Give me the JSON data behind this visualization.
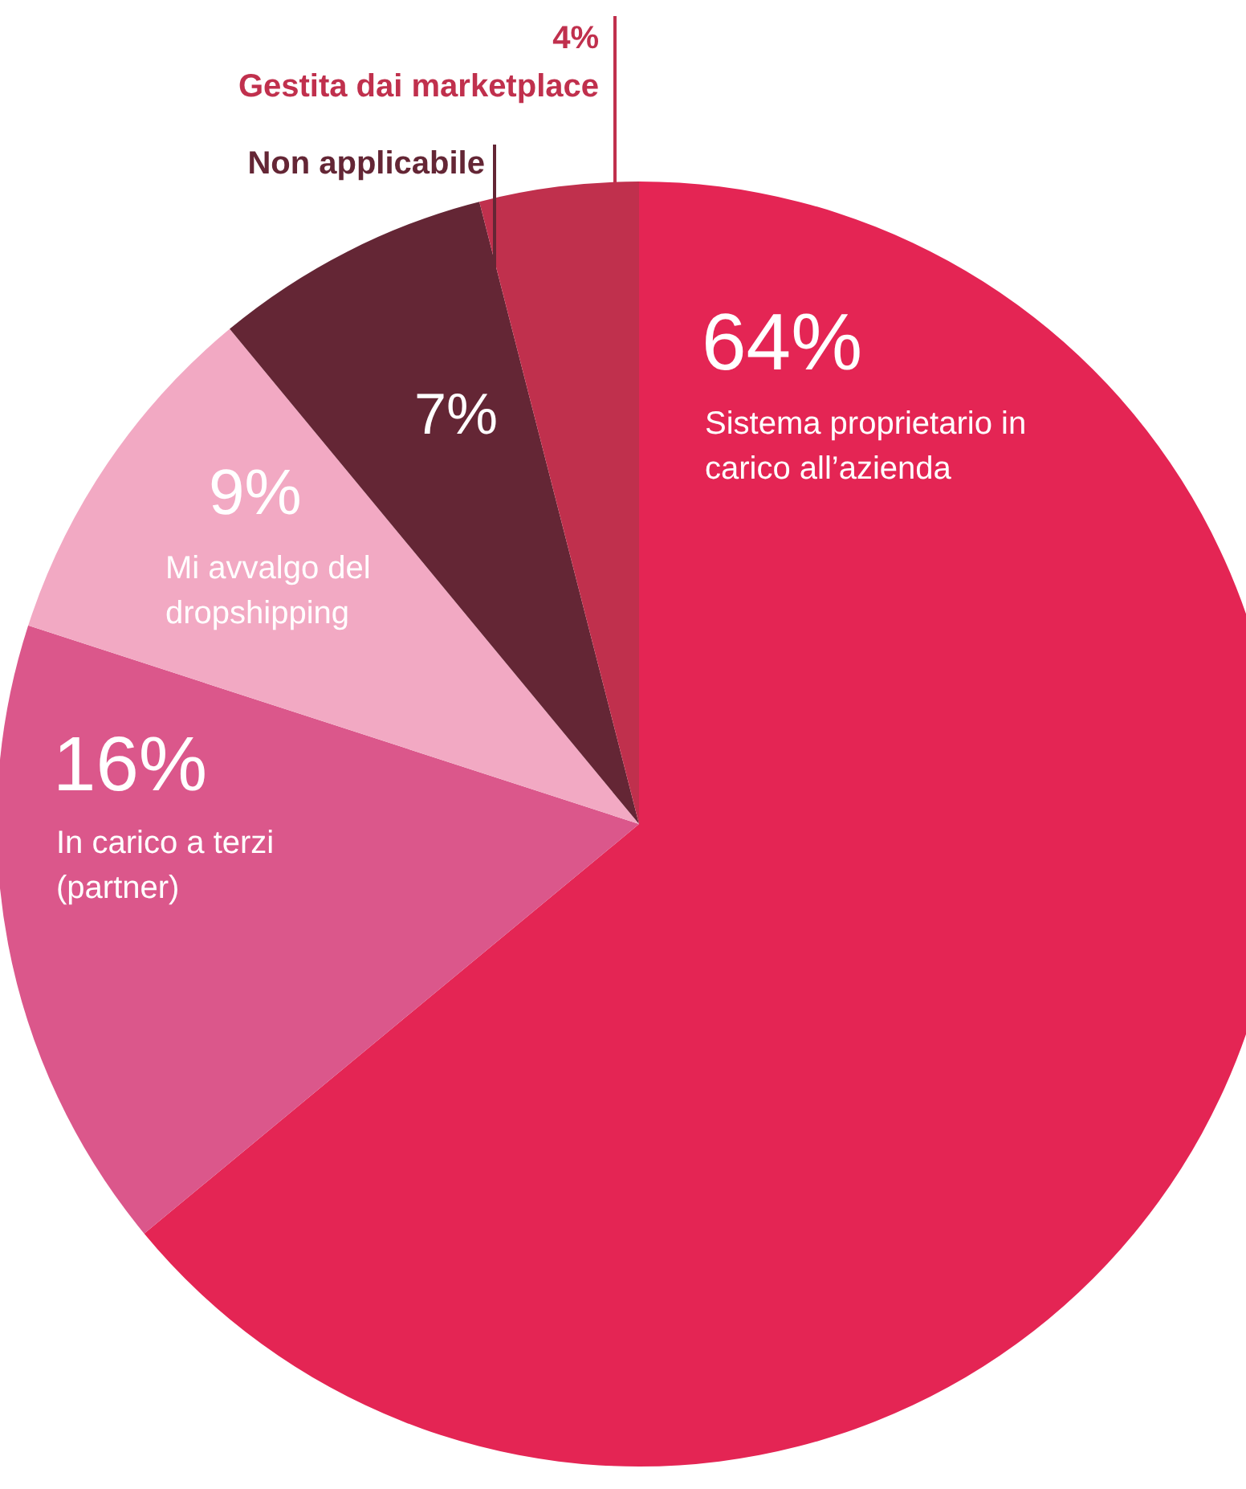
{
  "chart_data": {
    "type": "pie",
    "categories": [
      "Sistema proprietario in carico all’azienda",
      "In carico a terzi (partner)",
      "Mi avvalgo del dropshipping",
      "Non applicabile",
      "Gestita dai marketplace"
    ],
    "values": [
      64,
      16,
      9,
      7,
      4
    ],
    "value_labels": [
      "64%",
      "16%",
      "9%",
      "7%",
      "4%"
    ],
    "colors": [
      "#e42554",
      "#db578b",
      "#f2a9c3",
      "#642635",
      "#c0304d"
    ],
    "legend": false
  }
}
